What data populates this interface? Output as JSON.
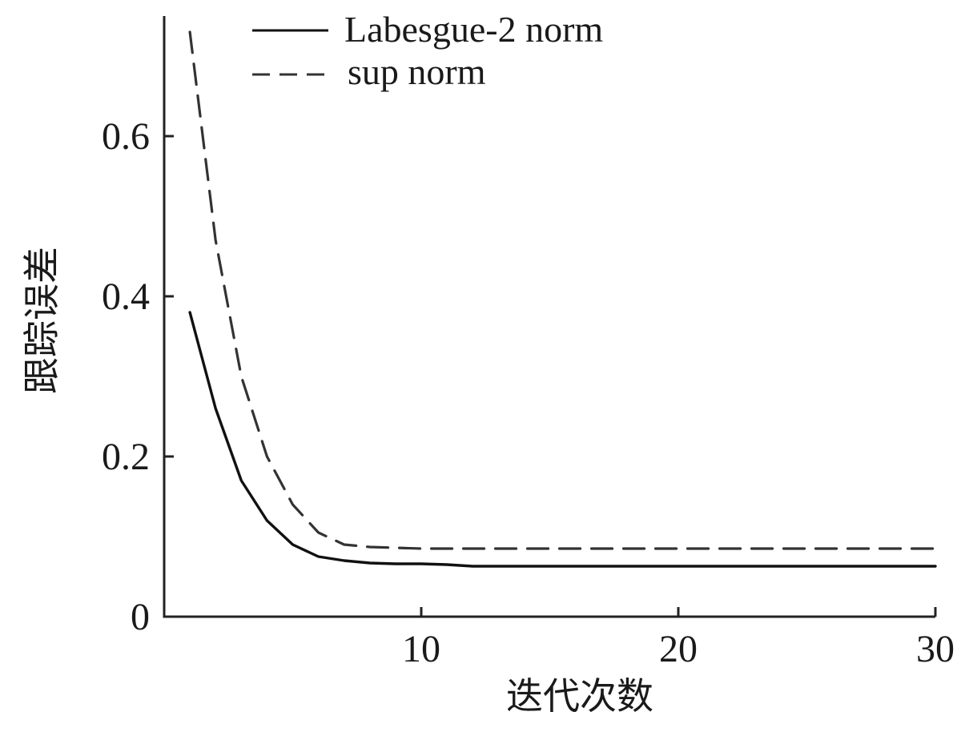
{
  "chart_data": {
    "type": "line",
    "title": "",
    "xlabel": "迭代次数",
    "ylabel": "跟踪误差",
    "xlim": [
      0,
      30
    ],
    "ylim": [
      0,
      0.75
    ],
    "xticks": [
      10,
      20,
      30
    ],
    "yticks": [
      0,
      0.2,
      0.4,
      0.6
    ],
    "xtick_labels": [
      "10",
      "20",
      "30"
    ],
    "ytick_labels": [
      "0",
      "0.2",
      "0.4",
      "0.6"
    ],
    "grid": false,
    "legend_position": "top-left",
    "series": [
      {
        "name": "Labesgue-2 norm",
        "style": "solid",
        "color": "#111111",
        "x": [
          1,
          2,
          3,
          4,
          5,
          6,
          7,
          8,
          9,
          10,
          11,
          12,
          15,
          20,
          25,
          30
        ],
        "y": [
          0.38,
          0.26,
          0.17,
          0.12,
          0.09,
          0.075,
          0.07,
          0.067,
          0.066,
          0.066,
          0.065,
          0.063,
          0.063,
          0.063,
          0.063,
          0.063
        ]
      },
      {
        "name": "sup norm",
        "style": "dashed",
        "color": "#333333",
        "x": [
          1,
          2,
          3,
          4,
          5,
          6,
          7,
          8,
          9,
          10,
          12,
          15,
          20,
          25,
          30
        ],
        "y": [
          0.73,
          0.47,
          0.3,
          0.2,
          0.14,
          0.105,
          0.09,
          0.087,
          0.086,
          0.085,
          0.085,
          0.085,
          0.085,
          0.085,
          0.085
        ]
      }
    ]
  }
}
